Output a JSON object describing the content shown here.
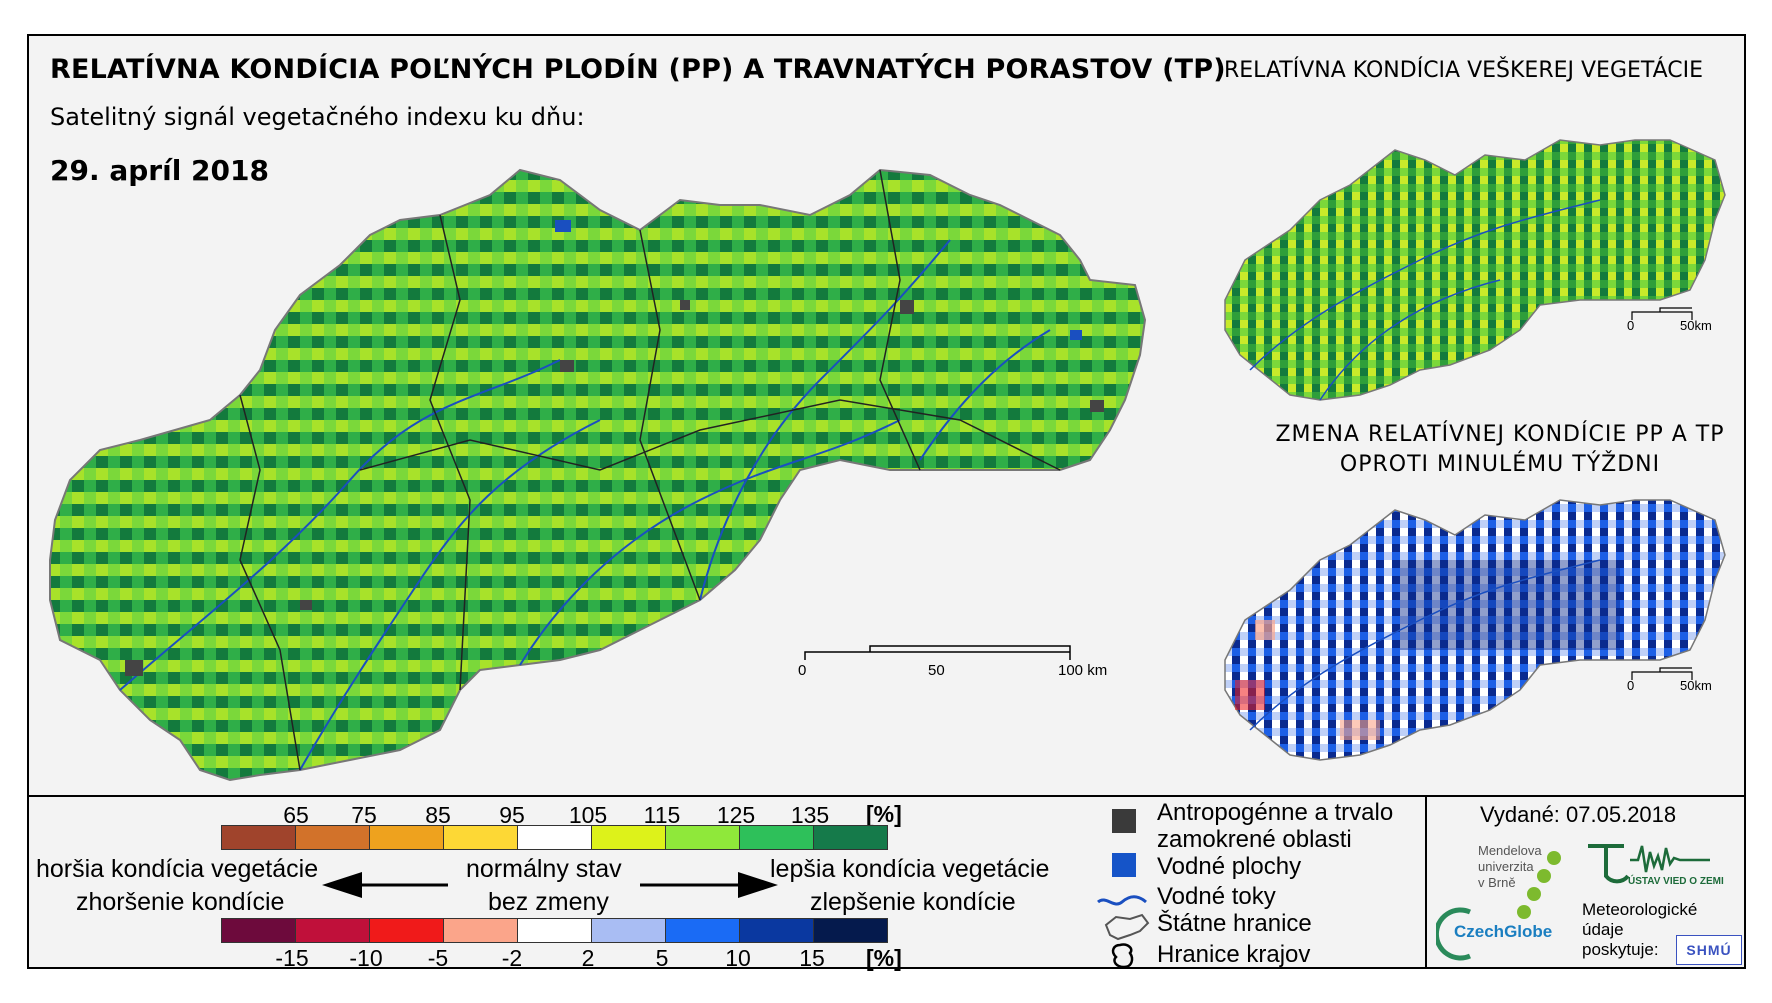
{
  "main_title": "RELATÍVNA KONDÍCIA POĽNÝCH PLODÍN (PP) A TRAVNATÝCH PORASTOV (TP)",
  "right_title": "RELATÍVNA KONDÍCIA VEŠKEREJ VEGETÁCIE",
  "subtitle": "Satelitný signál vegetačného indexu ku dňu:",
  "date": "29. apríl 2018",
  "change_title_line1": "ZMENA RELATÍVNEJ KONDÍCIE PP A TP",
  "change_title_line2": "OPROTI MINULÉMU TÝŽDNI",
  "main_scale": {
    "labels": [
      "0",
      "50",
      "100 km"
    ]
  },
  "small_scale": {
    "labels": [
      "0",
      "50km"
    ]
  },
  "condition_legend": {
    "ticks": [
      "65",
      "75",
      "85",
      "95",
      "105",
      "115",
      "125",
      "135"
    ],
    "unit": "[%]",
    "colors": [
      "#a0442c",
      "#d2722a",
      "#eea21e",
      "#fdd835",
      "#ffffff",
      "#ddf21a",
      "#8fe83a",
      "#2ec05a",
      "#157a4a"
    ]
  },
  "change_legend": {
    "ticks": [
      "-15",
      "-10",
      "-5",
      "-2",
      "2",
      "5",
      "10",
      "15"
    ],
    "unit": "[%]",
    "colors": [
      "#6d0a3c",
      "#c0103a",
      "#f01a1a",
      "#fba58a",
      "#ffffff",
      "#a9bdf3",
      "#1a6bf5",
      "#0a38a0",
      "#051a4d"
    ]
  },
  "labels": {
    "worse_condition": "horšia kondícia vegetácie",
    "worse_change": "zhoršenie kondície",
    "normal_state": "normálny stav",
    "no_change": "bez zmeny",
    "better_condition": "lepšia kondícia vegetácie",
    "better_change": "zlepšenie kondície"
  },
  "map_key": {
    "anthropogenic_line1": "Antropogénne a trvalo",
    "anthropogenic_line2": "zamokrené oblasti",
    "water_bodies": "Vodné plochy",
    "water_streams": "Vodné toky",
    "state_border": "Štátne hranice",
    "region_border": "Hranice krajov"
  },
  "issued": "Vydané: 07.05.2018",
  "logos": {
    "mendel": [
      "Mendelova",
      "univerzita",
      "v Brně"
    ],
    "czechglobe": "CzechGlobe",
    "institute": "ÚSTAV VIED O ZEMI",
    "data_note": [
      "Meteorologické",
      "údaje",
      "poskytuje:"
    ],
    "shmu": "SHMÚ"
  },
  "colors": {
    "map_green_dark": "#137a3d",
    "map_green": "#3fbf3f",
    "map_lime": "#a8e22a",
    "map_yellow": "#eef23a",
    "change_blue_dark": "#0a2a8f",
    "change_blue": "#1c5fe6",
    "change_light": "#bfd0f7"
  }
}
